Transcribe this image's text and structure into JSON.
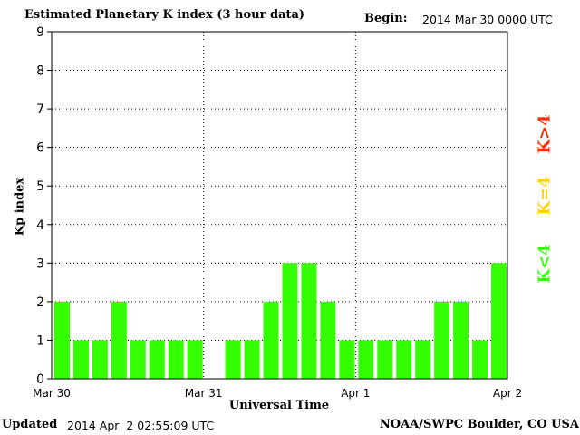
{
  "header": {
    "title": "Estimated Planetary K index (3 hour data)",
    "begin_label": "Begin:",
    "begin_value": "2014 Mar 30 0000 UTC"
  },
  "footer": {
    "updated_label": "Updated",
    "updated_value": "2014 Apr  2 02:55:09 UTC",
    "credit": "NOAA/SWPC Boulder, CO USA"
  },
  "legend": {
    "high": {
      "label": "K>4",
      "color": "#ff2a00"
    },
    "equal": {
      "label": "K=4",
      "color": "#ffd200"
    },
    "low": {
      "label": "K<4",
      "color": "#33ff00"
    }
  },
  "chart_data": {
    "type": "bar",
    "xlabel": "Universal Time",
    "ylabel": "Kp index",
    "ylim": [
      0,
      9
    ],
    "yticks": [
      0,
      1,
      2,
      3,
      4,
      5,
      6,
      7,
      8,
      9
    ],
    "xticks": [
      "Mar 30",
      "Mar 31",
      "Apr 1",
      "Apr 2"
    ],
    "grid": "dotted",
    "bar_color": "#33ff00",
    "slots_per_day": 8,
    "days": 3,
    "values": [
      2,
      1,
      1,
      2,
      1,
      1,
      1,
      1,
      null,
      1,
      1,
      2,
      3,
      3,
      2,
      1,
      1,
      1,
      1,
      1,
      2,
      2,
      1,
      3
    ]
  }
}
